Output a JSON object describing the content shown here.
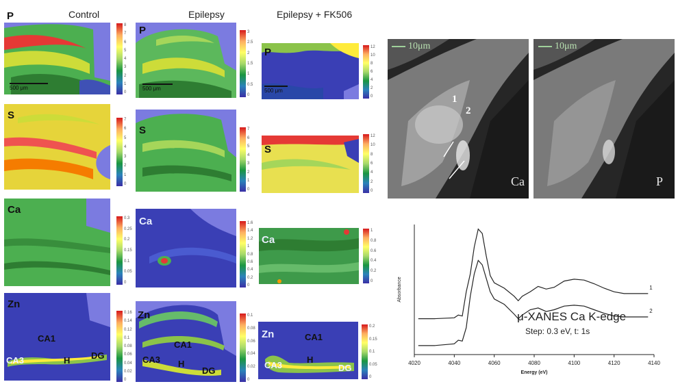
{
  "columns": {
    "control": "Control",
    "epilepsy": "Epilepsy",
    "fk506": "Epilepsy + FK506"
  },
  "elements": [
    "P",
    "S",
    "Ca",
    "Zn"
  ],
  "scale_bars": {
    "control": "500 μm",
    "epilepsy": "500 μm",
    "fk506": "500 μm"
  },
  "regions": {
    "control": [
      "CA1",
      "CA3",
      "H",
      "DG"
    ],
    "epilepsy": [
      "CA1",
      "CA3",
      "H",
      "DG"
    ],
    "fk506": [
      "CA1",
      "CA3",
      "H",
      "DG"
    ]
  },
  "colorbar_ticks": {
    "p_control": [
      "8",
      "7",
      "6",
      "5",
      "4",
      "3",
      "2",
      "1",
      "0"
    ],
    "p_epilepsy": [
      "3",
      "2.5",
      "2",
      "1.5",
      "1",
      "0.5",
      "0"
    ],
    "p_fk506": [
      "12",
      "10",
      "8",
      "6",
      "4",
      "2",
      "0"
    ],
    "s_control": [
      "7",
      "6",
      "5",
      "4",
      "3",
      "2",
      "1",
      "0"
    ],
    "s_epilepsy": [
      "7",
      "6",
      "5",
      "4",
      "3",
      "2",
      "1",
      "0"
    ],
    "s_fk506": [
      "12",
      "10",
      "8",
      "6",
      "4",
      "2",
      "0"
    ],
    "ca_control": [
      "0.3",
      "0.25",
      "0.2",
      "0.15",
      "0.1",
      "0.05",
      "0"
    ],
    "ca_epilepsy": [
      "1.6",
      "1.4",
      "1.2",
      "1",
      "0.8",
      "0.6",
      "0.4",
      "0.2",
      "0"
    ],
    "ca_fk506": [
      "1",
      "0.8",
      "0.6",
      "0.4",
      "0.2",
      "0"
    ],
    "zn_control": [
      "0.16",
      "0.14",
      "0.12",
      "0.1",
      "0.08",
      "0.06",
      "0.04",
      "0.02",
      "0"
    ],
    "zn_epilepsy": [
      "0.1",
      "0.08",
      "0.06",
      "0.04",
      "0.02",
      "0"
    ],
    "zn_fk506": [
      "0.2",
      "0.15",
      "0.1",
      "0.05",
      "0"
    ]
  },
  "micrographs": {
    "left_label": "Ca",
    "right_label": "P",
    "scale": "10μm",
    "points": [
      "1",
      "2"
    ]
  },
  "xanes": {
    "title": "μ-XANES Ca K-edge",
    "subtitle": "Step: 0.3 eV, t: 1s",
    "ylabel": "Absorbance",
    "xlabel": "Energy (eV)",
    "xticks": [
      "4020",
      "4040",
      "4060",
      "4080",
      "4100",
      "4120",
      "4140"
    ],
    "curve_labels": [
      "1",
      "2"
    ]
  },
  "chart_data": {
    "type": "line",
    "title": "μ-XANES Ca K-edge",
    "subtitle": "Step: 0.3 eV, t: 1s",
    "xlabel": "Energy (eV)",
    "ylabel": "Absorbance",
    "xlim": [
      4020,
      4140
    ],
    "series": [
      {
        "name": "1",
        "x": [
          4022,
          4030,
          4040,
          4042,
          4044,
          4046,
          4048,
          4050,
          4052,
          4054,
          4056,
          4058,
          4060,
          4065,
          4070,
          4072,
          4074,
          4078,
          4082,
          4086,
          4090,
          4095,
          4100,
          4105,
          4110,
          4115,
          4120,
          4125,
          4130,
          4137
        ],
        "y": [
          0.3,
          0.3,
          0.31,
          0.34,
          0.33,
          0.6,
          0.8,
          1.1,
          1.3,
          1.25,
          1.0,
          0.78,
          0.7,
          0.64,
          0.55,
          0.5,
          0.55,
          0.6,
          0.66,
          0.63,
          0.65,
          0.72,
          0.74,
          0.73,
          0.69,
          0.64,
          0.6,
          0.58,
          0.58,
          0.58
        ]
      },
      {
        "name": "2",
        "x": [
          4022,
          4030,
          4040,
          4042,
          4044,
          4046,
          4048,
          4050,
          4052,
          4054,
          4056,
          4058,
          4060,
          4065,
          4070,
          4072,
          4074,
          4078,
          4082,
          4086,
          4090,
          4095,
          4100,
          4105,
          4110,
          4115,
          4120,
          4125,
          4130,
          4137
        ],
        "y": [
          0.0,
          0.0,
          0.02,
          0.06,
          0.05,
          0.2,
          0.55,
          0.8,
          0.95,
          0.9,
          0.75,
          0.6,
          0.52,
          0.46,
          0.35,
          0.3,
          0.34,
          0.4,
          0.42,
          0.38,
          0.4,
          0.44,
          0.45,
          0.44,
          0.4,
          0.36,
          0.33,
          0.32,
          0.32,
          0.32
        ]
      }
    ]
  }
}
